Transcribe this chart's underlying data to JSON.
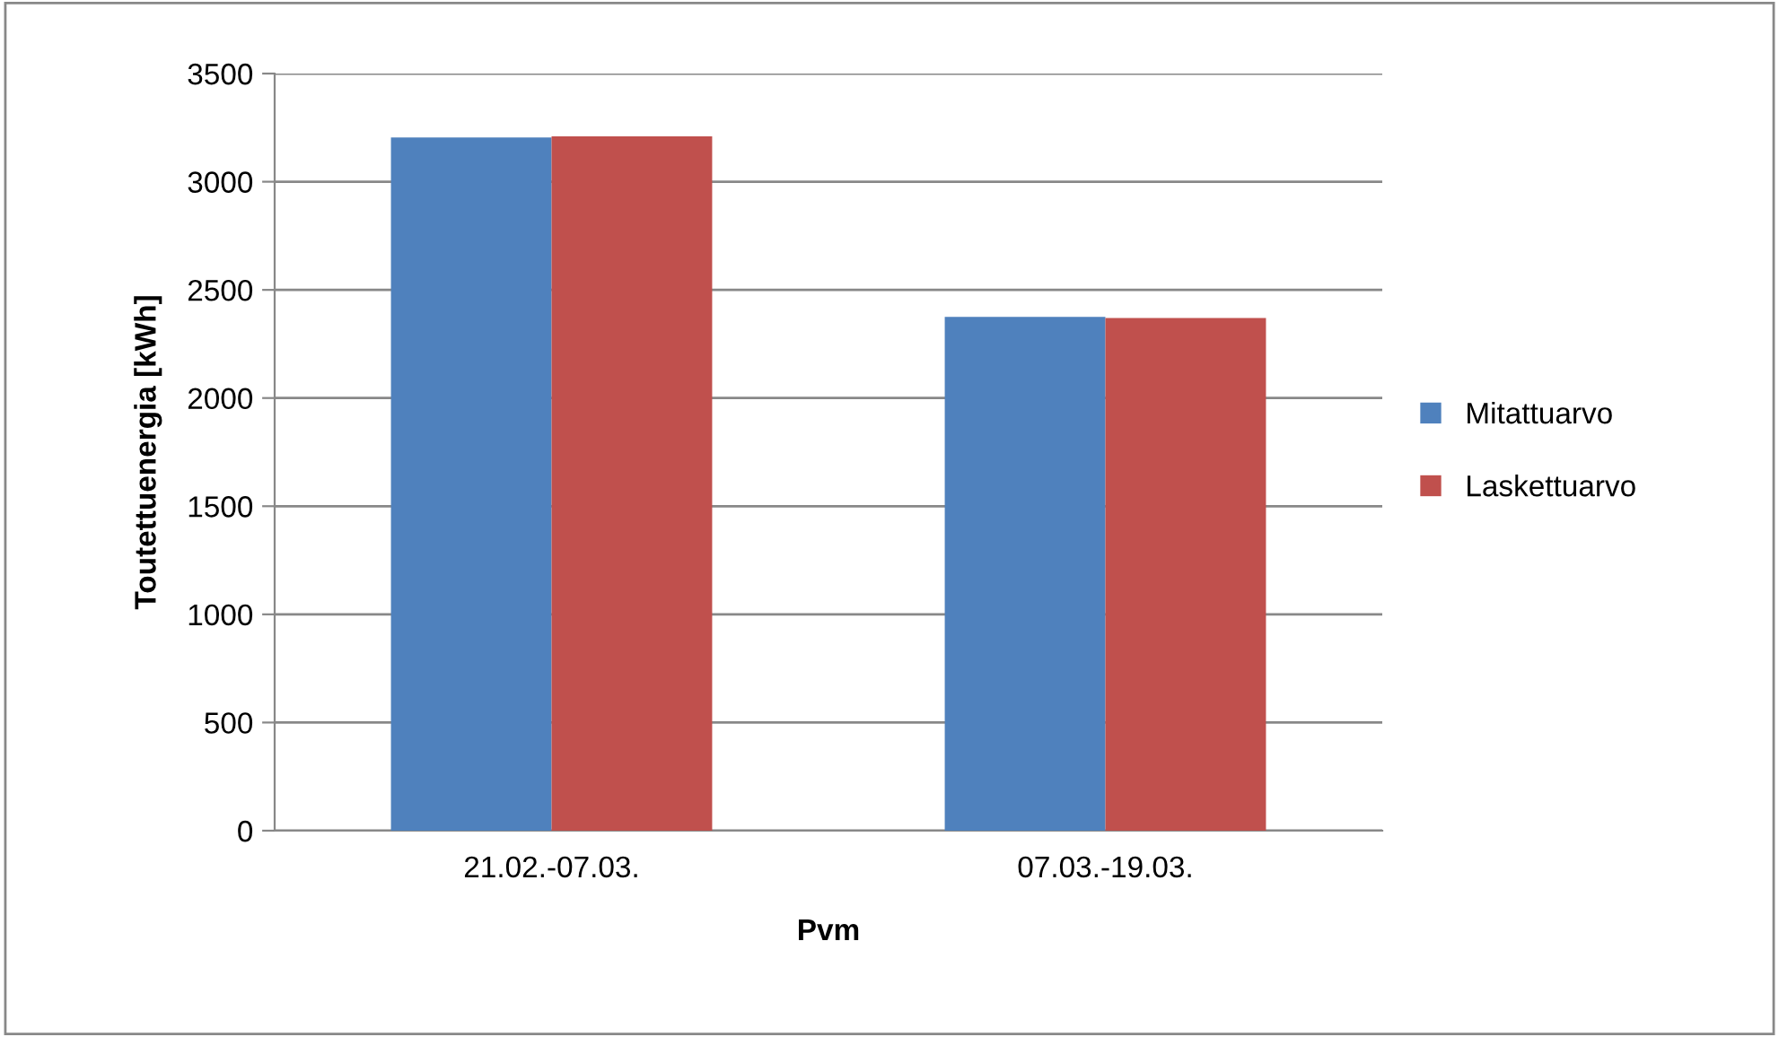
{
  "chart_data": {
    "type": "bar",
    "xlabel": "Pvm",
    "ylabel": "Toutettuenergia [kWh]",
    "categories": [
      "21.02.-07.03.",
      "07.03.-19.03."
    ],
    "series": [
      {
        "name": "Mitattuarvo",
        "color": "#4f81bd",
        "values": [
          3205,
          2375
        ]
      },
      {
        "name": "Laskettuarvo",
        "color": "#c0504d",
        "values": [
          3210,
          2370
        ]
      }
    ],
    "ylim": [
      0,
      3500
    ],
    "yticks": [
      0,
      500,
      1000,
      1500,
      2000,
      2500,
      3000,
      3500
    ],
    "grid": "y",
    "legend": "right"
  }
}
